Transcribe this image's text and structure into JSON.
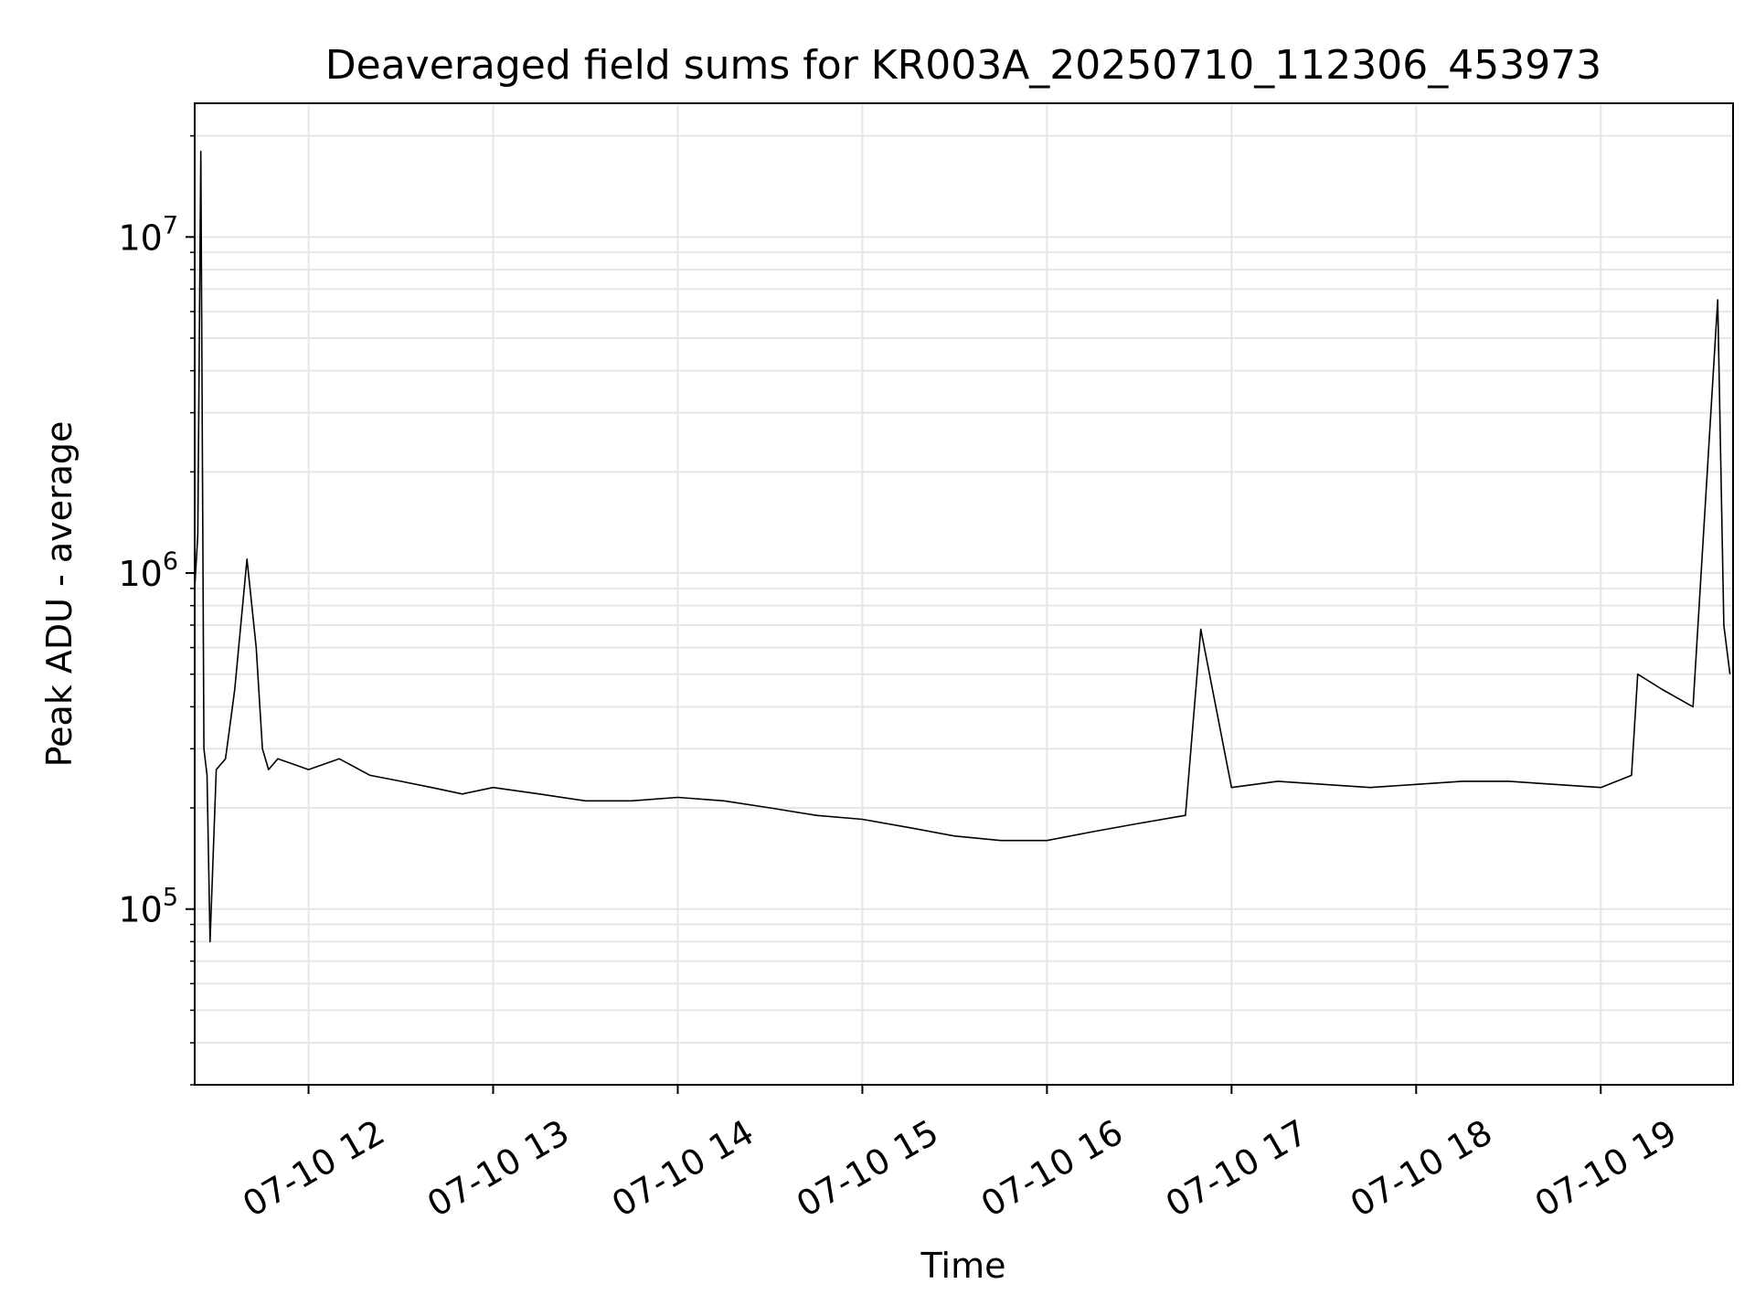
{
  "chart_data": {
    "type": "line",
    "title": "Deaveraged field sums for KR003A_20250710_112306_453973",
    "xlabel": "Time",
    "ylabel": "Peak ADU - average",
    "y_scale": "log",
    "grid": true,
    "line_color": "#000000",
    "x_range": [
      "2025-07-10 11:23",
      "2025-07-10 19:43"
    ],
    "ylim": [
      30000,
      25000000
    ],
    "x_ticks": [
      {
        "time": "2025-07-10 12:00",
        "label": "07-10 12"
      },
      {
        "time": "2025-07-10 13:00",
        "label": "07-10 13"
      },
      {
        "time": "2025-07-10 14:00",
        "label": "07-10 14"
      },
      {
        "time": "2025-07-10 15:00",
        "label": "07-10 15"
      },
      {
        "time": "2025-07-10 16:00",
        "label": "07-10 16"
      },
      {
        "time": "2025-07-10 17:00",
        "label": "07-10 17"
      },
      {
        "time": "2025-07-10 18:00",
        "label": "07-10 18"
      },
      {
        "time": "2025-07-10 19:00",
        "label": "07-10 19"
      }
    ],
    "y_ticks": [
      {
        "value": 100000,
        "base": "10",
        "exp": "5"
      },
      {
        "value": 1000000,
        "base": "10",
        "exp": "6"
      },
      {
        "value": 10000000,
        "base": "10",
        "exp": "7"
      }
    ],
    "series": [
      {
        "x": [
          "2025-07-10 11:23",
          "2025-07-10 11:24",
          "2025-07-10 11:25",
          "2025-07-10 11:26",
          "2025-07-10 11:27",
          "2025-07-10 11:28",
          "2025-07-10 11:30",
          "2025-07-10 11:33",
          "2025-07-10 11:36",
          "2025-07-10 11:40",
          "2025-07-10 11:43",
          "2025-07-10 11:45",
          "2025-07-10 11:47",
          "2025-07-10 11:50",
          "2025-07-10 11:55",
          "2025-07-10 12:00",
          "2025-07-10 12:10",
          "2025-07-10 12:20",
          "2025-07-10 12:30",
          "2025-07-10 12:40",
          "2025-07-10 12:50",
          "2025-07-10 13:00",
          "2025-07-10 13:15",
          "2025-07-10 13:30",
          "2025-07-10 13:45",
          "2025-07-10 14:00",
          "2025-07-10 14:15",
          "2025-07-10 14:30",
          "2025-07-10 14:45",
          "2025-07-10 15:00",
          "2025-07-10 15:15",
          "2025-07-10 15:30",
          "2025-07-10 15:45",
          "2025-07-10 16:00",
          "2025-07-10 16:15",
          "2025-07-10 16:30",
          "2025-07-10 16:45",
          "2025-07-10 16:50",
          "2025-07-10 17:00",
          "2025-07-10 17:15",
          "2025-07-10 17:30",
          "2025-07-10 17:45",
          "2025-07-10 18:00",
          "2025-07-10 18:15",
          "2025-07-10 18:30",
          "2025-07-10 18:45",
          "2025-07-10 19:00",
          "2025-07-10 19:10",
          "2025-07-10 19:12",
          "2025-07-10 19:20",
          "2025-07-10 19:30",
          "2025-07-10 19:38",
          "2025-07-10 19:40",
          "2025-07-10 19:42"
        ],
        "y": [
          900000,
          1300000,
          18000000,
          300000,
          250000,
          80000,
          260000,
          280000,
          450000,
          1100000,
          600000,
          300000,
          260000,
          280000,
          270000,
          260000,
          280000,
          250000,
          240000,
          230000,
          220000,
          230000,
          220000,
          210000,
          210000,
          215000,
          210000,
          200000,
          190000,
          185000,
          175000,
          165000,
          160000,
          160000,
          170000,
          180000,
          190000,
          680000,
          230000,
          240000,
          235000,
          230000,
          235000,
          240000,
          240000,
          235000,
          230000,
          250000,
          500000,
          450000,
          400000,
          6500000,
          700000,
          500000
        ]
      }
    ]
  }
}
